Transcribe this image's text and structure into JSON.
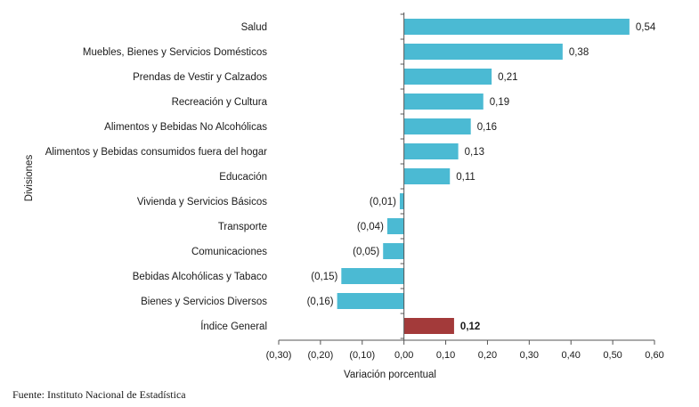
{
  "colors": {
    "bar": "#4bbad3",
    "highlight": "#a33a3a",
    "axis": "#555555"
  },
  "chart_data": {
    "type": "bar",
    "orientation": "horizontal",
    "categories": [
      "Salud",
      "Muebles, Bienes y Servicios Domésticos",
      "Prendas de Vestir y Calzados",
      "Recreación y Cultura",
      "Alimentos y Bebidas No Alcohólicas",
      "Alimentos y Bebidas consumidos fuera del hogar",
      "Educación",
      "Vivienda y Servicios Básicos",
      "Transporte",
      "Comunicaciones",
      "Bebidas Alcohólicas y Tabaco",
      "Bienes y Servicios Diversos",
      "Índice General"
    ],
    "values": [
      0.54,
      0.38,
      0.21,
      0.19,
      0.16,
      0.13,
      0.11,
      -0.01,
      -0.04,
      -0.05,
      -0.15,
      -0.16,
      0.12
    ],
    "value_labels": [
      "0,54",
      "0,38",
      "0,21",
      "0,19",
      "0,16",
      "0,13",
      "0,11",
      "(0,01)",
      "(0,04)",
      "(0,05)",
      "(0,15)",
      "(0,16)",
      "0,12"
    ],
    "highlight_category": "Índice General",
    "xlim": [
      -0.3,
      0.6
    ],
    "xticks": [
      -0.3,
      -0.2,
      -0.1,
      0.0,
      0.1,
      0.2,
      0.3,
      0.4,
      0.5,
      0.6
    ],
    "xtick_labels": [
      "(0,30)",
      "(0,20)",
      "(0,10)",
      "0,00",
      "0,10",
      "0,20",
      "0,30",
      "0,40",
      "0,50",
      "0,60"
    ],
    "xlabel": "Variación porcentual",
    "ylabel": "Divisiones",
    "grid": false,
    "legend": false
  },
  "source": "Fuente: Instituto Nacional de Estadística"
}
